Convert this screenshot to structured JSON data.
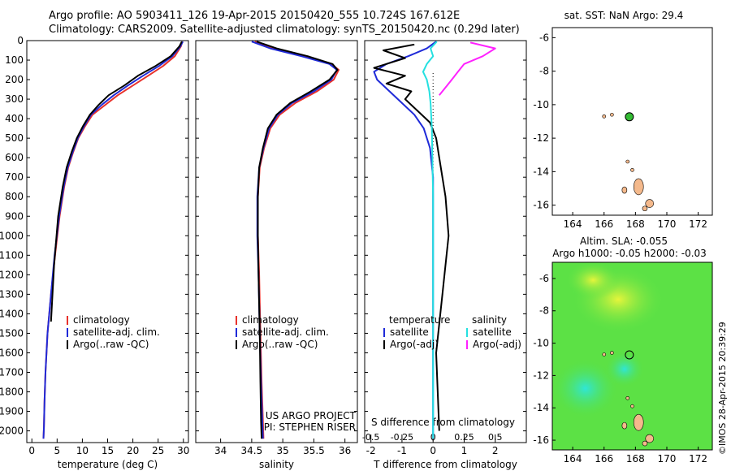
{
  "header": {
    "line1": "Argo profile: AO 5903411_126 19-Apr-2015 20150420_555 10.724S 167.612E",
    "line2": "Climatology: CARS2009. Satellite-adjusted climatology: synTS_20150420.nc (0.29d later)"
  },
  "colors": {
    "climatology": "#e8322c",
    "satellite": "#1f2ad8",
    "argo": "#000000",
    "argo_sal": "#ff21ff",
    "sat_sal": "#25e0e0",
    "float_marker": "#33bb33",
    "land": "#f4b98c"
  },
  "credits": {
    "project": "US ARGO PROJECT",
    "pi": "PI: STEPHEN RISER",
    "stamp": "©IMOS 28-Apr-2015 20:39:29"
  },
  "chart_data": [
    {
      "type": "line",
      "xlabel": "temperature (deg C)",
      "ylabel": "",
      "xlim": [
        -1,
        31
      ],
      "ylim": [
        2060,
        0
      ],
      "xticks": [
        0,
        5,
        10,
        15,
        20,
        25,
        30
      ],
      "yticks": [
        0,
        100,
        200,
        300,
        400,
        500,
        600,
        700,
        800,
        900,
        1000,
        1100,
        1200,
        1300,
        1400,
        1500,
        1600,
        1700,
        1800,
        1900,
        2000
      ],
      "legend": {
        "position": "bottom",
        "entries": [
          "climatology",
          "satellite-adj. clim.",
          "Argo(..raw -QC)"
        ]
      },
      "series": [
        {
          "name": "climatology",
          "color": "red",
          "x": [
            29.8,
            29.5,
            28.3,
            26.0,
            23.0,
            20.0,
            17.0,
            14.5,
            12.0,
            10.5,
            9.2,
            8.2,
            7.2,
            6.4,
            5.5,
            4.6,
            3.8,
            3.1,
            2.7,
            2.5,
            2.4,
            2.3
          ],
          "y": [
            5,
            30,
            80,
            130,
            180,
            230,
            280,
            330,
            380,
            440,
            500,
            570,
            650,
            750,
            900,
            1100,
            1300,
            1500,
            1700,
            1850,
            1980,
            2040
          ]
        },
        {
          "name": "satellite-adj. clim.",
          "color": "blue",
          "x": [
            29.9,
            29.4,
            27.8,
            25.2,
            22.0,
            19.0,
            16.2,
            13.8,
            11.7,
            10.3,
            9.1,
            8.1,
            7.1,
            6.3,
            5.4,
            4.5,
            3.8,
            3.1,
            2.7,
            2.5,
            2.4,
            2.3
          ],
          "y": [
            5,
            30,
            80,
            130,
            180,
            230,
            280,
            330,
            380,
            440,
            500,
            570,
            650,
            750,
            900,
            1100,
            1300,
            1500,
            1700,
            1850,
            1980,
            2040
          ]
        },
        {
          "name": "Argo(..raw -QC)",
          "color": "black",
          "x": [
            29.7,
            29.2,
            27.5,
            24.5,
            21.0,
            18.3,
            15.2,
            13.2,
            11.5,
            10.1,
            8.9,
            7.9,
            6.9,
            6.1,
            5.2,
            4.4,
            3.8
          ],
          "y": [
            5,
            30,
            80,
            130,
            180,
            230,
            280,
            330,
            380,
            440,
            500,
            570,
            650,
            750,
            900,
            1150,
            1440
          ]
        }
      ]
    },
    {
      "type": "line",
      "xlabel": "salinity",
      "xlim": [
        33.6,
        36.2
      ],
      "ylim": [
        2060,
        0
      ],
      "xticks": [
        34,
        34.5,
        35,
        35.5,
        36
      ],
      "legend": {
        "position": "bottom",
        "entries": [
          "climatology",
          "satellite-adj. clim.",
          "Argo(..raw -QC)"
        ]
      },
      "series": [
        {
          "name": "climatology",
          "color": "red",
          "x": [
            34.55,
            34.85,
            35.35,
            35.78,
            35.9,
            35.82,
            35.55,
            35.2,
            34.95,
            34.8,
            34.7,
            34.63,
            34.6,
            34.6,
            34.62,
            34.64,
            34.66,
            34.68,
            34.69
          ],
          "y": [
            5,
            40,
            80,
            120,
            150,
            200,
            260,
            320,
            380,
            450,
            550,
            650,
            800,
            1000,
            1200,
            1500,
            1750,
            1950,
            2040
          ]
        },
        {
          "name": "satellite-adj. clim.",
          "color": "blue",
          "x": [
            34.5,
            34.8,
            35.3,
            35.75,
            35.87,
            35.78,
            35.5,
            35.15,
            34.92,
            34.78,
            34.69,
            34.62,
            34.59,
            34.59,
            34.61,
            34.63,
            34.65,
            34.67,
            34.68
          ],
          "y": [
            5,
            40,
            80,
            120,
            150,
            200,
            260,
            320,
            380,
            450,
            550,
            650,
            800,
            1000,
            1200,
            1500,
            1750,
            1950,
            2040
          ]
        },
        {
          "name": "Argo(..raw -QC)",
          "color": "black",
          "x": [
            34.58,
            34.9,
            35.4,
            35.8,
            35.88,
            35.75,
            35.45,
            35.12,
            34.9,
            34.76,
            34.68,
            34.62,
            34.6,
            34.6,
            34.61,
            34.63,
            34.64,
            34.65,
            34.66
          ],
          "y": [
            5,
            40,
            80,
            120,
            150,
            200,
            260,
            320,
            380,
            450,
            550,
            650,
            800,
            1000,
            1200,
            1500,
            1750,
            1950,
            2040
          ]
        }
      ]
    },
    {
      "type": "line",
      "xlabel": "T difference from climatology",
      "top_label": "S difference from climatology",
      "xlim": [
        -2.2,
        3.0
      ],
      "ylim": [
        2060,
        0
      ],
      "xticks": [
        -2,
        -1,
        0,
        1,
        2
      ],
      "top_xticks": [
        -0.5,
        -0.25,
        0,
        0.25,
        0.5
      ],
      "legend": {
        "position": "bottom",
        "temperature_title": "temperature",
        "salinity_title": "salinity",
        "entries": [
          "satellite",
          "Argo(-adj)",
          "satellite",
          "Argo(-adj)"
        ]
      },
      "series": [
        {
          "name": "temperature satellite",
          "color": "blue",
          "x": [
            0.1,
            -0.2,
            -0.8,
            -1.5,
            -1.9,
            -1.8,
            -1.4,
            -1.0,
            -0.6,
            -0.3,
            -0.1,
            0.0,
            0.0,
            0.0
          ],
          "y": [
            5,
            40,
            80,
            120,
            160,
            200,
            260,
            320,
            380,
            450,
            550,
            700,
            1000,
            2040
          ]
        },
        {
          "name": "temperature Argo(-adj)",
          "color": "black",
          "x": [
            -0.6,
            -1.6,
            -0.9,
            -1.9,
            -0.9,
            -1.5,
            -0.7,
            -0.9,
            -0.5,
            -0.1,
            0.1,
            0.2,
            0.4,
            0.5,
            0.3,
            0.1,
            0.2
          ],
          "y": [
            20,
            50,
            90,
            140,
            180,
            220,
            260,
            300,
            360,
            420,
            500,
            600,
            800,
            1000,
            1300,
            1600,
            2000
          ]
        },
        {
          "name": "salinity satellite",
          "color": "cyan",
          "x": [
            0.03,
            -0.02,
            0.0,
            -0.05,
            -0.08,
            -0.05,
            -0.03,
            -0.02,
            -0.01,
            0.0,
            0.0
          ],
          "y": [
            5,
            40,
            80,
            120,
            160,
            200,
            260,
            320,
            450,
            800,
            2040
          ]
        },
        {
          "name": "salinity Argo(-adj)",
          "color": "magenta",
          "x": [
            0.3,
            0.5,
            0.4,
            0.25,
            0.2,
            0.15,
            0.1,
            0.05
          ],
          "y": [
            10,
            40,
            80,
            120,
            160,
            200,
            240,
            280
          ]
        }
      ]
    },
    {
      "type": "scatter",
      "title": "sat. SST: NaN Argo: 29.4",
      "xlim": [
        162.7,
        172.9
      ],
      "ylim": [
        -16.6,
        -5.4
      ],
      "xticks": [
        164,
        166,
        168,
        170,
        172
      ],
      "yticks": [
        -6,
        -8,
        -10,
        -12,
        -14,
        -16
      ],
      "float_position": {
        "lon": 167.612,
        "lat": -10.724
      }
    },
    {
      "type": "heatmap",
      "title": "Altim. SLA: -0.055",
      "subtitle": "Argo h1000: -0.05 h2000: -0.03",
      "xlim": [
        162.7,
        172.9
      ],
      "ylim": [
        -16.6,
        -5.0
      ],
      "xticks": [
        164,
        166,
        168,
        170,
        172
      ],
      "yticks": [
        -6,
        -8,
        -10,
        -12,
        -14,
        -16
      ],
      "float_position": {
        "lon": 167.612,
        "lat": -10.724
      }
    }
  ]
}
